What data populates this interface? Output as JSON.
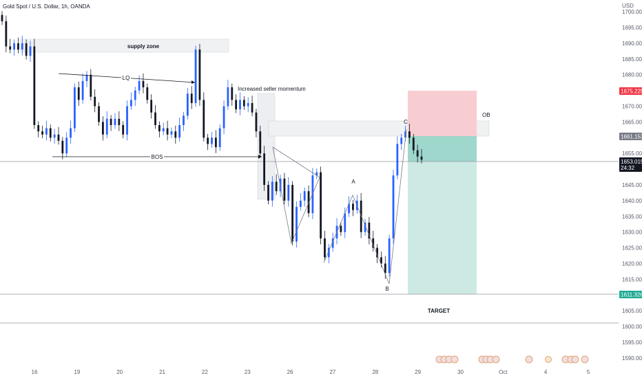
{
  "chart_data": {
    "type": "candlestick",
    "title": "Gold Spot / U.S. Dollar, 1h, OANDA",
    "currency": "USD",
    "ylim": [
      1588,
      1702
    ],
    "y_ticks": [
      "1700.000",
      "1695.000",
      "1690.000",
      "1685.000",
      "1680.000",
      "1675.000",
      "1670.000",
      "1665.000",
      "1660.000",
      "1655.000",
      "1650.000",
      "1645.000",
      "1640.000",
      "1635.000",
      "1630.000",
      "1625.000",
      "1620.000",
      "1615.000",
      "1610.000",
      "1605.000",
      "1600.000",
      "1595.000",
      "1590.000"
    ],
    "x_ticks": [
      "16",
      "19",
      "20",
      "21",
      "22",
      "23",
      "26",
      "27",
      "28",
      "29",
      "30",
      "Oct",
      "4",
      "5"
    ],
    "x_tick_positions": [
      0,
      60,
      120,
      180,
      240,
      300,
      360,
      420,
      480,
      540,
      600,
      660,
      720,
      780
    ],
    "candles_close": [
      1697,
      1689,
      1688,
      1690,
      1688,
      1690,
      1686,
      1689,
      1664,
      1662,
      1661,
      1663,
      1660,
      1661,
      1659,
      1655,
      1660,
      1663,
      1676,
      1672,
      1678,
      1680,
      1673,
      1670,
      1665,
      1661,
      1666,
      1664,
      1666,
      1664,
      1661,
      1670,
      1672,
      1675,
      1678,
      1676,
      1672,
      1668,
      1664,
      1662,
      1663,
      1661,
      1662,
      1660,
      1664,
      1667,
      1674,
      1671,
      1688,
      1672,
      1660,
      1658,
      1660,
      1657,
      1663,
      1670,
      1676,
      1672,
      1669,
      1672,
      1670,
      1671,
      1668,
      1662,
      1655,
      1645,
      1640,
      1646,
      1643,
      1647,
      1640,
      1645,
      1627,
      1638,
      1640,
      1643,
      1636,
      1648,
      1649,
      1628,
      1622,
      1625,
      1628,
      1632,
      1630,
      1636,
      1639,
      1637,
      1640,
      1630,
      1633,
      1628,
      1625,
      1622,
      1620,
      1617,
      1628,
      1648,
      1658,
      1660,
      1662,
      1660,
      1656,
      1654,
      1653
    ],
    "price_tags": {
      "current": "1653.015",
      "countdown": "24:32",
      "stop": "1675.225",
      "entry": "1661.153",
      "target": "1611.326"
    },
    "annotations": {
      "supply": "supply zone",
      "lq": "LQ",
      "bos": "BOS",
      "momentum": "Increased seller momentum",
      "ob": "OB",
      "a": "A",
      "b": "B",
      "c": "C",
      "target": "TARGET"
    },
    "colors": {
      "up": "#2962ff",
      "down": "#131722",
      "stop_zone": "#f7cdd1",
      "target_zone": "#cde9e3",
      "entry_zone": "#9fd7cc",
      "stop_tag": "#f23645",
      "target_tag": "#22ab94",
      "entry_tag": "#787b86"
    }
  }
}
